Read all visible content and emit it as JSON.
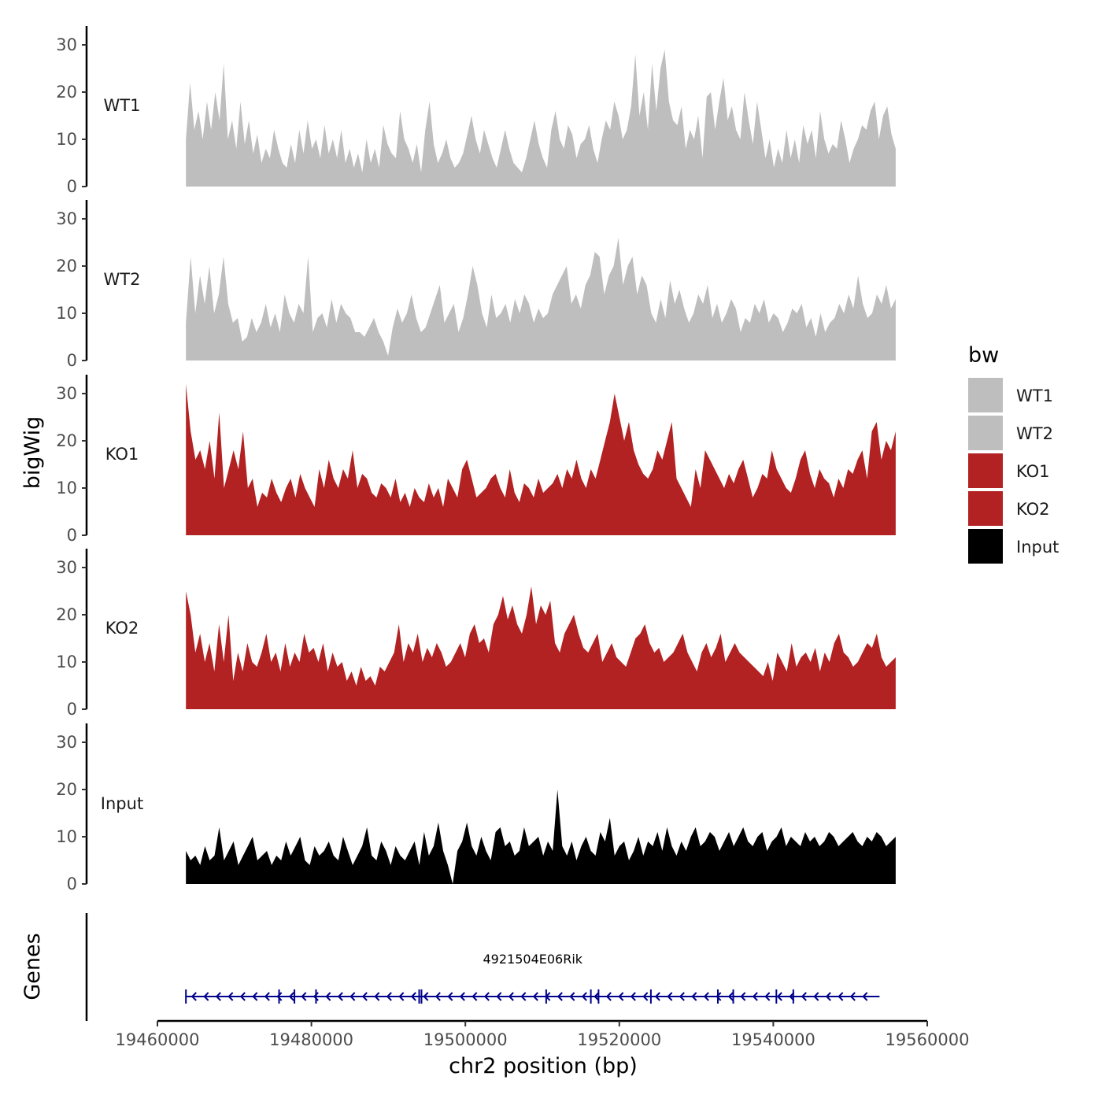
{
  "chart_data": {
    "type": "area",
    "title": "",
    "xlabel": "chr2 position (bp)",
    "ylabel": "bigWig",
    "genes_label": "Genes",
    "xlim": [
      19460000,
      19560000
    ],
    "x_ticks": [
      19460000,
      19480000,
      19500000,
      19520000,
      19540000,
      19560000
    ],
    "x_tick_labels": [
      "19460000",
      "19480000",
      "19500000",
      "19520000",
      "19540000",
      "19560000"
    ],
    "ylim": [
      0,
      34
    ],
    "y_ticks": [
      0,
      10,
      20,
      30
    ],
    "y_tick_labels": [
      "0",
      "10",
      "20",
      "30"
    ],
    "data_range": [
      19463700,
      19555900
    ],
    "legend": {
      "title": "bw",
      "position": "right",
      "entries": [
        {
          "name": "WT1",
          "color": "#bebebe"
        },
        {
          "name": "WT2",
          "color": "#bebebe"
        },
        {
          "name": "KO1",
          "color": "#b22222"
        },
        {
          "name": "KO2",
          "color": "#b22222"
        },
        {
          "name": "Input",
          "color": "#000000"
        }
      ]
    },
    "series": [
      {
        "name": "WT1",
        "color": "#bebebe",
        "values": [
          10,
          22,
          12,
          16,
          10,
          18,
          12,
          20,
          14,
          26,
          10,
          14,
          8,
          18,
          9,
          14,
          7,
          11,
          5,
          8,
          6,
          12,
          8,
          5,
          4,
          9,
          5,
          12,
          7,
          14,
          8,
          10,
          6,
          13,
          7,
          10,
          6,
          12,
          5,
          8,
          4,
          7,
          3,
          10,
          5,
          8,
          4,
          13,
          9,
          7,
          6,
          16,
          10,
          8,
          5,
          9,
          3,
          12,
          18,
          9,
          5,
          7,
          10,
          6,
          4,
          5,
          7,
          11,
          15,
          10,
          7,
          12,
          9,
          6,
          4,
          8,
          12,
          8,
          5,
          4,
          3,
          6,
          10,
          14,
          9,
          6,
          4,
          12,
          16,
          10,
          8,
          13,
          11,
          6,
          9,
          10,
          13,
          8,
          5,
          10,
          14,
          12,
          18,
          15,
          10,
          12,
          17,
          28,
          15,
          20,
          12,
          26,
          16,
          25,
          29,
          18,
          14,
          13,
          17,
          8,
          12,
          10,
          15,
          6,
          19,
          20,
          12,
          18,
          23,
          14,
          17,
          12,
          10,
          20,
          14,
          9,
          18,
          12,
          6,
          10,
          4,
          8,
          5,
          12,
          6,
          10,
          5,
          13,
          9,
          12,
          6,
          16,
          10,
          7,
          9,
          8,
          14,
          10,
          5,
          8,
          10,
          13,
          12,
          16,
          18,
          10,
          15,
          17,
          11,
          8
        ]
      },
      {
        "name": "WT2",
        "color": "#bebebe",
        "values": [
          8,
          22,
          10,
          18,
          12,
          20,
          10,
          14,
          22,
          12,
          8,
          9,
          4,
          5,
          9,
          6,
          8,
          12,
          7,
          10,
          6,
          14,
          10,
          8,
          12,
          10,
          22,
          6,
          9,
          10,
          7,
          13,
          8,
          12,
          10,
          9,
          6,
          6,
          5,
          7,
          9,
          6,
          4,
          1,
          7,
          11,
          8,
          10,
          14,
          9,
          6,
          7,
          10,
          13,
          16,
          8,
          10,
          12,
          6,
          9,
          14,
          20,
          16,
          10,
          7,
          14,
          9,
          10,
          12,
          8,
          13,
          10,
          14,
          12,
          8,
          11,
          9,
          10,
          14,
          16,
          18,
          20,
          12,
          14,
          11,
          16,
          18,
          23,
          22,
          14,
          18,
          20,
          26,
          16,
          20,
          22,
          14,
          18,
          16,
          10,
          8,
          13,
          9,
          17,
          12,
          15,
          11,
          8,
          10,
          14,
          12,
          16,
          9,
          12,
          8,
          10,
          13,
          11,
          6,
          9,
          8,
          12,
          10,
          13,
          8,
          10,
          9,
          6,
          8,
          11,
          10,
          12,
          7,
          9,
          5,
          10,
          6,
          8,
          9,
          12,
          10,
          14,
          11,
          18,
          12,
          9,
          10,
          14,
          12,
          16,
          11,
          13
        ]
      },
      {
        "name": "KO1",
        "color": "#b22222",
        "values": [
          32,
          22,
          16,
          18,
          14,
          20,
          12,
          26,
          10,
          14,
          18,
          14,
          22,
          10,
          12,
          6,
          9,
          8,
          12,
          9,
          7,
          10,
          12,
          8,
          13,
          10,
          8,
          6,
          14,
          10,
          16,
          12,
          10,
          14,
          12,
          18,
          10,
          13,
          12,
          9,
          8,
          11,
          10,
          8,
          12,
          7,
          9,
          6,
          10,
          8,
          7,
          11,
          8,
          10,
          6,
          12,
          10,
          8,
          14,
          16,
          12,
          8,
          9,
          10,
          12,
          13,
          10,
          8,
          14,
          9,
          7,
          11,
          10,
          8,
          12,
          9,
          10,
          11,
          13,
          10,
          14,
          12,
          16,
          12,
          10,
          14,
          12,
          16,
          20,
          24,
          30,
          25,
          20,
          24,
          18,
          15,
          13,
          12,
          14,
          18,
          16,
          20,
          24,
          12,
          10,
          8,
          6,
          14,
          10,
          18,
          16,
          14,
          12,
          10,
          13,
          11,
          14,
          16,
          12,
          8,
          10,
          13,
          12,
          18,
          14,
          12,
          10,
          9,
          12,
          16,
          18,
          13,
          10,
          14,
          12,
          11,
          8,
          12,
          10,
          14,
          13,
          16,
          18,
          12,
          22,
          24,
          16,
          20,
          18,
          22
        ]
      },
      {
        "name": "KO2",
        "color": "#b22222",
        "values": [
          25,
          20,
          12,
          16,
          10,
          14,
          8,
          18,
          10,
          20,
          6,
          12,
          8,
          14,
          10,
          9,
          12,
          16,
          10,
          12,
          8,
          14,
          9,
          12,
          10,
          16,
          12,
          13,
          10,
          14,
          8,
          12,
          9,
          10,
          6,
          8,
          5,
          9,
          6,
          7,
          5,
          9,
          8,
          10,
          12,
          18,
          10,
          14,
          12,
          16,
          10,
          13,
          11,
          14,
          12,
          9,
          10,
          12,
          14,
          11,
          16,
          18,
          14,
          15,
          12,
          18,
          20,
          24,
          19,
          22,
          18,
          16,
          20,
          26,
          18,
          22,
          20,
          23,
          14,
          12,
          16,
          18,
          20,
          16,
          13,
          12,
          14,
          16,
          10,
          12,
          14,
          11,
          10,
          9,
          12,
          15,
          16,
          18,
          14,
          12,
          13,
          10,
          11,
          12,
          14,
          16,
          12,
          10,
          8,
          12,
          14,
          11,
          13,
          16,
          10,
          12,
          14,
          12,
          11,
          10,
          9,
          8,
          7,
          10,
          6,
          12,
          10,
          8,
          14,
          9,
          11,
          12,
          10,
          13,
          8,
          12,
          10,
          14,
          16,
          12,
          11,
          9,
          10,
          12,
          14,
          13,
          16,
          11,
          9,
          10,
          11
        ]
      },
      {
        "name": "Input",
        "color": "#000000",
        "values": [
          7,
          5,
          6,
          4,
          8,
          5,
          6,
          12,
          5,
          7,
          9,
          4,
          6,
          8,
          10,
          5,
          6,
          7,
          4,
          6,
          5,
          9,
          6,
          8,
          10,
          5,
          4,
          8,
          6,
          7,
          9,
          6,
          5,
          10,
          7,
          4,
          6,
          8,
          12,
          6,
          5,
          9,
          7,
          4,
          8,
          6,
          5,
          7,
          9,
          4,
          11,
          6,
          8,
          13,
          7,
          4,
          0,
          7,
          9,
          13,
          8,
          6,
          10,
          7,
          5,
          11,
          12,
          8,
          9,
          6,
          7,
          12,
          8,
          9,
          10,
          6,
          9,
          7,
          20,
          8,
          6,
          9,
          5,
          8,
          10,
          7,
          6,
          11,
          9,
          14,
          6,
          8,
          9,
          5,
          7,
          10,
          6,
          9,
          8,
          11,
          7,
          12,
          8,
          6,
          9,
          7,
          10,
          12,
          8,
          9,
          11,
          10,
          7,
          9,
          11,
          8,
          10,
          12,
          9,
          8,
          10,
          11,
          7,
          9,
          10,
          12,
          8,
          10,
          9,
          8,
          11,
          9,
          10,
          8,
          9,
          11,
          10,
          8,
          9,
          10,
          11,
          9,
          8,
          10,
          9,
          11,
          10,
          8,
          9,
          10
        ]
      }
    ],
    "gene": {
      "name": "4921504E06Rik",
      "start": 19463700,
      "end": 19553800,
      "strand": "-",
      "color": "#00008b",
      "exons": [
        19463700,
        19475800,
        19477800,
        19480600,
        19494000,
        19494300,
        19510500,
        19516300,
        19517300,
        19524100,
        19532800,
        19534800,
        19540400,
        19542600
      ]
    }
  }
}
